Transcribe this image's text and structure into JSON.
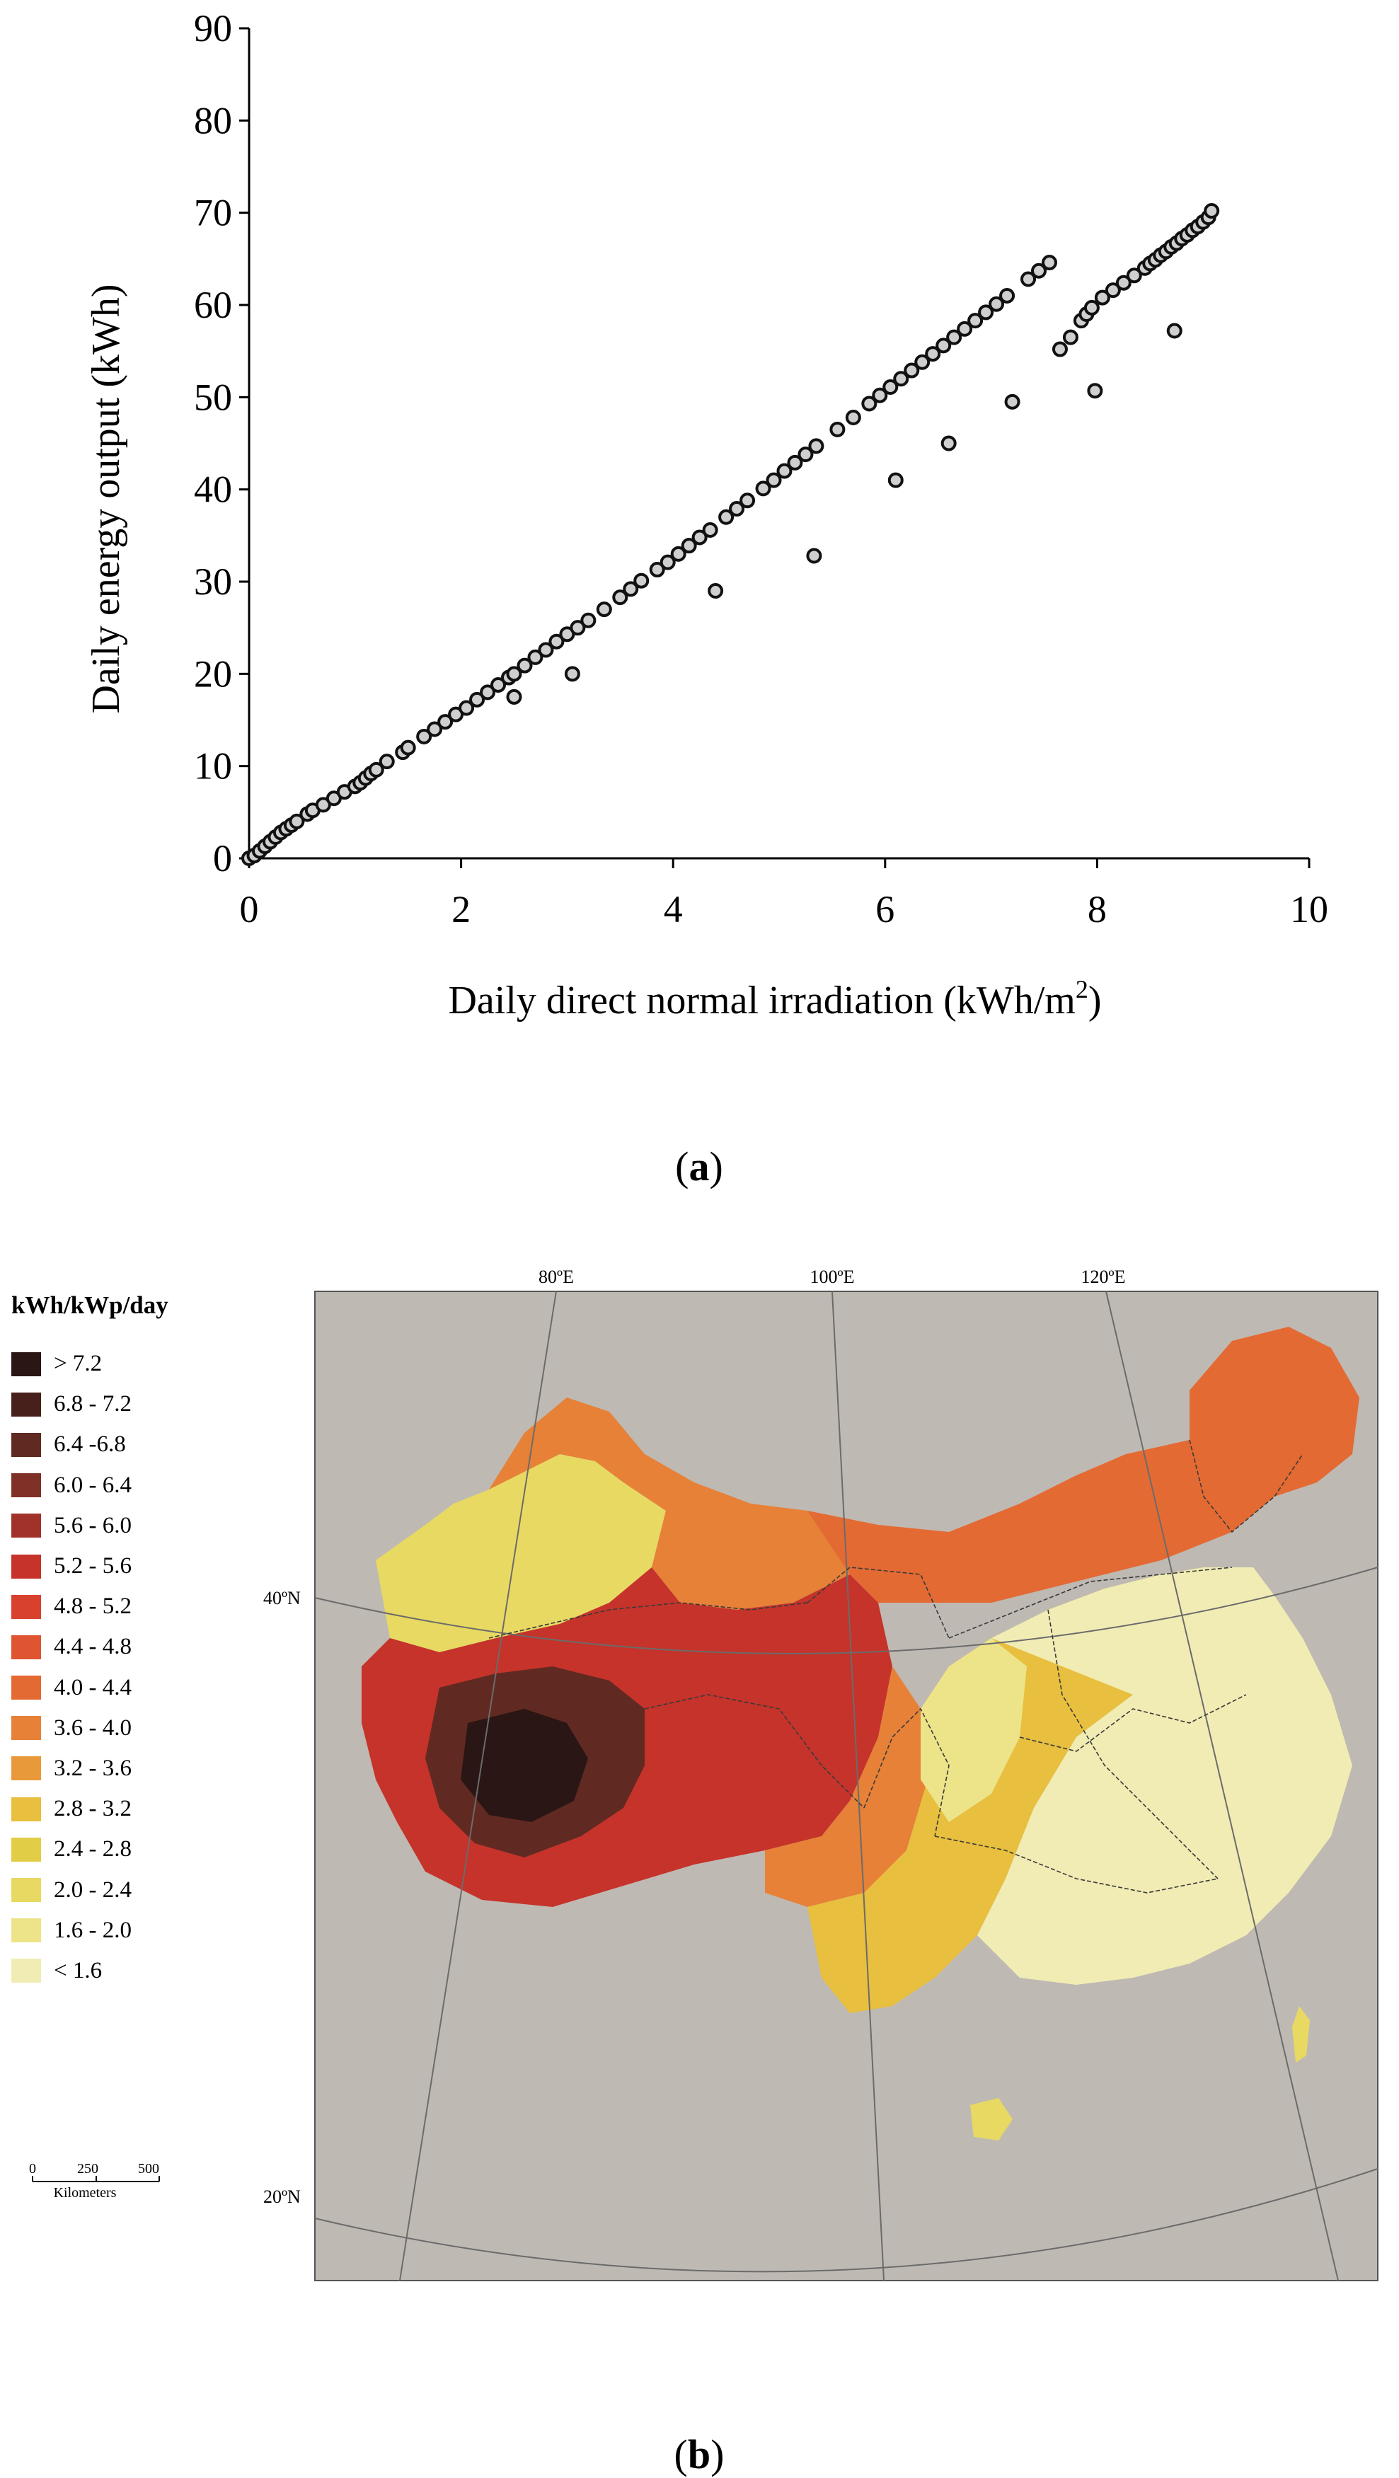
{
  "panel_a": {
    "label": "a",
    "chart_data": {
      "type": "scatter",
      "title": "",
      "xlabel": "Daily direct normal irradiation (kWh/m",
      "xlabel_sup": "2",
      "xlabel_end": ")",
      "ylabel": "Daily energy output (kWh)",
      "xlim": [
        0,
        10
      ],
      "ylim": [
        0,
        90
      ],
      "xticks": [
        0,
        2,
        4,
        6,
        8,
        10
      ],
      "yticks": [
        0,
        10,
        20,
        30,
        40,
        50,
        60,
        70,
        80,
        90
      ],
      "grid": false,
      "series": [
        {
          "name": "days",
          "marker": "circle",
          "x": [
            0.0,
            0.05,
            0.1,
            0.15,
            0.2,
            0.25,
            0.3,
            0.35,
            0.4,
            0.45,
            0.55,
            0.6,
            0.7,
            0.8,
            0.9,
            1.0,
            1.05,
            1.1,
            1.15,
            1.2,
            1.3,
            1.45,
            1.5,
            1.65,
            1.75,
            1.85,
            1.95,
            2.05,
            2.15,
            2.25,
            2.35,
            2.45,
            2.5,
            2.6,
            2.7,
            2.8,
            2.9,
            3.0,
            3.1,
            3.2,
            3.35,
            3.5,
            3.6,
            3.7,
            3.85,
            3.95,
            4.05,
            4.15,
            4.25,
            4.35,
            4.5,
            4.6,
            4.7,
            4.85,
            4.95,
            5.05,
            5.15,
            5.25,
            5.35,
            5.55,
            5.7,
            5.85,
            5.95,
            6.05,
            6.15,
            6.25,
            6.35,
            6.45,
            6.55,
            6.65,
            6.75,
            6.85,
            6.95,
            7.05,
            7.15,
            7.35,
            7.45,
            7.55,
            7.65,
            7.75,
            7.85,
            7.9,
            7.95,
            8.05,
            8.15,
            8.25,
            8.35,
            8.45,
            8.5,
            8.55,
            8.6,
            8.65,
            8.7,
            8.75,
            8.8,
            8.85,
            8.9,
            8.95,
            9.0,
            9.05,
            9.08,
            5.33,
            7.98,
            8.73,
            2.5,
            3.05,
            4.4,
            6.1,
            6.6,
            7.2
          ],
          "y": [
            0.0,
            0.3,
            0.8,
            1.3,
            1.8,
            2.3,
            2.8,
            3.2,
            3.6,
            4.0,
            4.8,
            5.2,
            5.8,
            6.5,
            7.2,
            7.8,
            8.2,
            8.7,
            9.2,
            9.6,
            10.5,
            11.5,
            12.0,
            13.2,
            14.0,
            14.8,
            15.6,
            16.3,
            17.2,
            18.0,
            18.8,
            19.6,
            20.0,
            20.9,
            21.8,
            22.6,
            23.5,
            24.3,
            25.0,
            25.8,
            27.0,
            28.3,
            29.2,
            30.1,
            31.3,
            32.1,
            33.0,
            33.9,
            34.8,
            35.6,
            37.0,
            37.9,
            38.8,
            40.1,
            41.0,
            42.0,
            42.9,
            43.8,
            44.7,
            46.5,
            47.8,
            49.3,
            50.2,
            51.1,
            52.0,
            52.9,
            53.8,
            54.7,
            55.6,
            56.5,
            57.4,
            58.3,
            59.2,
            60.1,
            61.0,
            62.8,
            63.7,
            64.6,
            55.2,
            56.5,
            58.3,
            59.0,
            59.7,
            60.8,
            61.6,
            62.4,
            63.2,
            64.0,
            64.5,
            64.9,
            65.4,
            65.8,
            66.3,
            66.7,
            67.2,
            67.6,
            68.1,
            68.5,
            69.0,
            69.5,
            70.2,
            32.8,
            50.7,
            57.2,
            17.5,
            20.0,
            29.0,
            41.0,
            45.0,
            49.5
          ]
        }
      ]
    }
  },
  "panel_b": {
    "label": "b",
    "legend": {
      "title": "kWh/kWp/day",
      "items": [
        {
          "label": "> 7.2",
          "color": "#2a1614"
        },
        {
          "label": "6.8 - 7.2",
          "color": "#47201b"
        },
        {
          "label": "6.4 -6.8",
          "color": "#602a22"
        },
        {
          "label": "6.0 - 6.4",
          "color": "#7f3128"
        },
        {
          "label": "5.6 - 6.0",
          "color": "#a03229"
        },
        {
          "label": "5.2 - 5.6",
          "color": "#c5332a"
        },
        {
          "label": "4.8 - 5.2",
          "color": "#d8412e"
        },
        {
          "label": "4.4 - 4.8",
          "color": "#df5531"
        },
        {
          "label": "4.0 - 4.4",
          "color": "#e36a33"
        },
        {
          "label": "3.6 - 4.0",
          "color": "#e68137"
        },
        {
          "label": "3.2 - 3.6",
          "color": "#e89a3a"
        },
        {
          "label": "2.8 - 3.2",
          "color": "#e8bf3e"
        },
        {
          "label": "2.4 - 2.8",
          "color": "#e2ce46"
        },
        {
          "label": "2.0 - 2.4",
          "color": "#e8d962"
        },
        {
          "label": "1.6 - 2.0",
          "color": "#ede48a"
        },
        {
          "label": "< 1.6",
          "color": "#f1ecb4"
        }
      ]
    },
    "scale_bar": {
      "ticks": [
        "0",
        "250",
        "500"
      ],
      "unit": "Kilometers"
    },
    "map": {
      "background_color": "#bfb9b3",
      "graticule_labels": {
        "lon": [
          "80ºE",
          "100ºE",
          "120ºE"
        ],
        "lat": [
          "40ºN",
          "20ºN"
        ]
      }
    }
  }
}
